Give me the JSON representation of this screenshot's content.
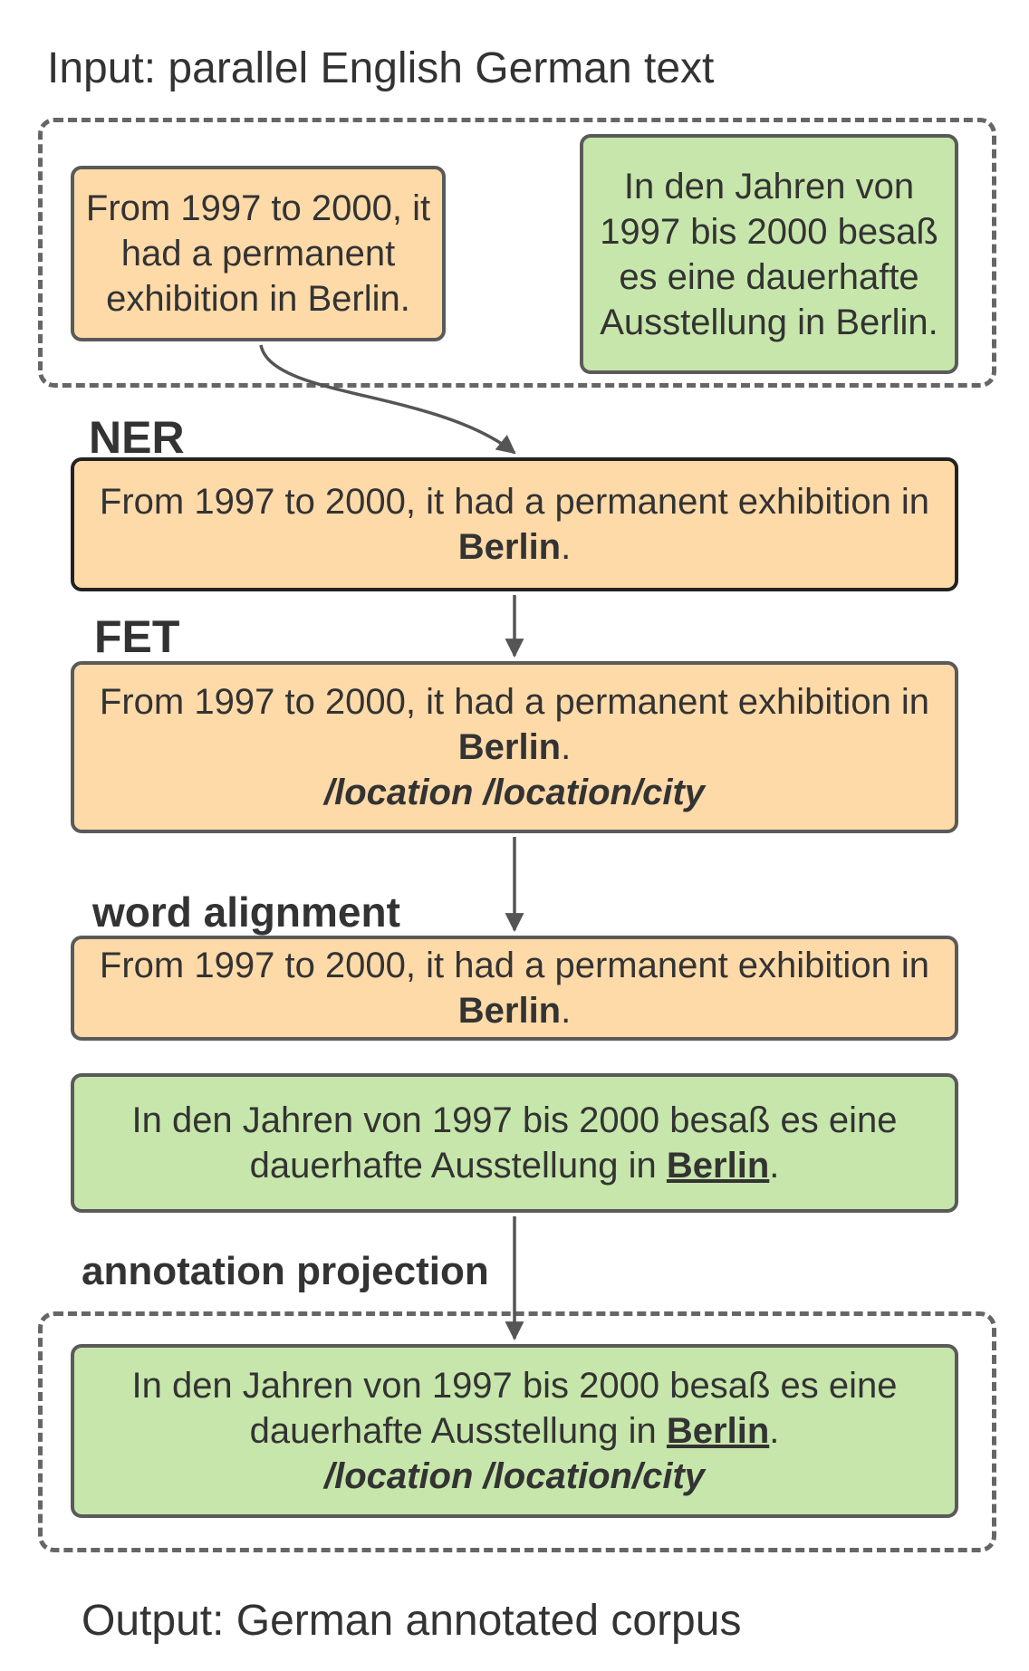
{
  "input_label": "Input: parallel English German text",
  "output_label": "Output: German annotated corpus",
  "english_source": "From 1997 to 2000, it had a permanent exhibition in Berlin.",
  "german_source": "In den Jahren von 1997 bis 2000 besaß es eine dauerhafte Ausstellung in Berlin.",
  "ner": {
    "heading": "NER",
    "text_before": "From 1997 to 2000, it had a permanent exhibition in",
    "entity": "Berlin",
    "text_after": "."
  },
  "fet": {
    "heading": "FET",
    "text_before": "From 1997 to 2000, it had a permanent exhibition in",
    "entity": "Berlin",
    "text_after": ".",
    "types": "/location /location/city"
  },
  "word_alignment": {
    "heading": "word alignment",
    "english_before": "From 1997 to 2000, it had a permanent exhibition in",
    "english_entity": "Berlin",
    "english_after": ".",
    "german_before": "In den Jahren von 1997 bis 2000 besaß es eine dauerhafte Ausstellung in",
    "german_entity": "Berlin",
    "german_after": "."
  },
  "annotation_projection": {
    "heading": "annotation projection",
    "german_before": "In den Jahren von 1997 bis 2000 besaß es eine dauerhafte Ausstellung in",
    "german_entity": "Berlin",
    "german_after": ".",
    "types": "/location /location/city"
  },
  "colors": {
    "english_box": "#fedaa8",
    "german_box": "#c7e6ab",
    "border": "#5a5a5a",
    "arrow": "#555555"
  }
}
